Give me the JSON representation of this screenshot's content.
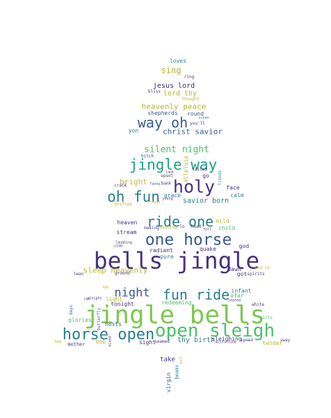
{
  "palette": {
    "dark_purple": "#46327e",
    "deep_purple": "#3b2a6e",
    "slate_blue": "#365c8d",
    "teal_blue": "#277f8e",
    "teal": "#1fa187",
    "green": "#4ac16d",
    "lime": "#7ec850",
    "olive_yellow": "#b5b531",
    "gold": "#c8b33a"
  },
  "words": {
    "loves": "loves",
    "sing": "sing",
    "ring": "ring",
    "jesus_lord": "jesus lord",
    "bliss": "bliss",
    "lord_thy": "lord thy",
    "thought": "thought",
    "heavenly_peace": "heavenly peace",
    "shepherds": "shepherds",
    "round": "round",
    "ocean": "ocean",
    "way_oh": "way oh",
    "youll": "you'll",
    "yon": "yon",
    "christ_savior": "christ savior",
    "silent_night": "silent night",
    "hitch": "hitch",
    "jingle_way": "jingle way",
    "alleluia": "alleluia",
    "lank": "lank",
    "upsot": "upsot",
    "tailed": "tailed",
    "trends": "trends",
    "go": "go",
    "bright": "bright",
    "bank": "bank",
    "holy": "holy",
    "fanny": "fanny",
    "crack": "crack",
    "face": "face",
    "oh_fun": "oh fun",
    "grace": "grace",
    "calm": "calm",
    "young": "young",
    "laugh": "laugh",
    "drifted": "drifted",
    "savior_born": "savior born",
    "ride_one": "ride one",
    "heaven": "heaven",
    "mild": "mild",
    "making": "making",
    "dashing": "dashing",
    "lo": "lo",
    "head": "head",
    "tall": "tall",
    "stream": "stream",
    "child": "child",
    "one_horse": "one horse",
    "laughing": "laughing",
    "side": "side",
    "quake": "quake",
    "god": "god",
    "bells_jingle": "bells jingle",
    "radiant": "radiant",
    "pure": "pure",
    "sleep_heavenly": "sleep heavenly",
    "dawn": "dawn",
    "youre": "you're",
    "lean": "lean",
    "ground": "ground",
    "got": "got",
    "spirits": "spirits",
    "night": "night",
    "fun_ride": "fun ride",
    "infant": "infant",
    "ago": "ago",
    "afar": "afar",
    "can": "can",
    "light": "light",
    "sleighs": "sleighs",
    "seated": "seated",
    "tonight": "tonight",
    "redeeming": "redeeming",
    "white": "white",
    "jingle_bells": "jingle bells",
    "days": "days",
    "glories": "glories",
    "hosts": "hosts",
    "open_sleigh": "open sleigh",
    "girls": "girls",
    "horse_open": "horse open",
    "misfortune": "misfortune",
    "sleighing": "sleighing",
    "speed": "speed",
    "sway": "sway",
    "thy_birth": "thy birth",
    "two": "two",
    "bob": "bob",
    "mother": "mother",
    "sight": "sight",
    "seemed": "seemed",
    "tender": "tender",
    "take": "take",
    "virgin": "virgin",
    "beams": "beams",
    "err": "err",
    "butterfly": "butterfly",
    "mixed": "mixed"
  }
}
